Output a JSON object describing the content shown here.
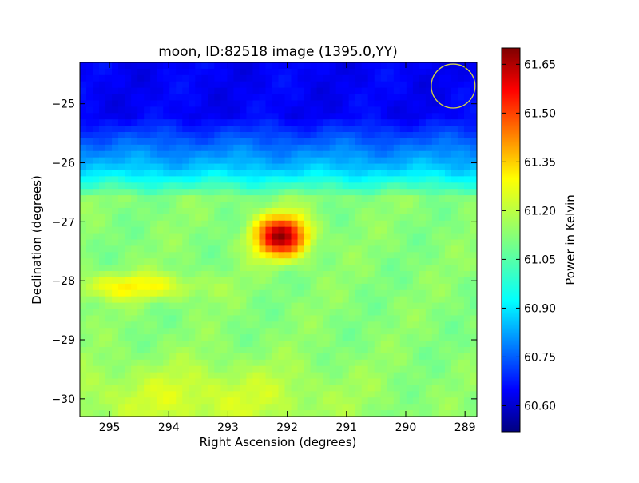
{
  "chart_data": {
    "type": "heatmap",
    "title": "moon, ID:82518 image (1395.0,YY)",
    "xlabel": "Right Ascension (degrees)",
    "ylabel": "Declination (degrees)",
    "xlim": [
      295.5,
      288.8
    ],
    "ylim": [
      -30.3,
      -24.3
    ],
    "x_ticks": [
      295,
      294,
      293,
      292,
      291,
      290,
      289
    ],
    "x_tick_labels": [
      "295",
      "294",
      "293",
      "292",
      "291",
      "290",
      "289"
    ],
    "y_ticks": [
      -25,
      -26,
      -27,
      -28,
      -29,
      -30
    ],
    "y_tick_labels": [
      "−25",
      "−26",
      "−27",
      "−28",
      "−29",
      "−30"
    ],
    "colorbar": {
      "label": "Power in Kelvin",
      "range": [
        60.52,
        61.7
      ],
      "ticks": [
        60.6,
        60.75,
        60.9,
        61.05,
        61.2,
        61.35,
        61.5,
        61.65
      ],
      "tick_labels": [
        "60.60",
        "60.75",
        "60.90",
        "61.05",
        "61.20",
        "61.35",
        "61.50",
        "61.65"
      ],
      "colormap": "jet"
    },
    "hotspot": {
      "ra": 292.1,
      "dec": -27.25,
      "peak_value": 61.68
    },
    "beam_circle": {
      "ra": 289.2,
      "dec": -24.7,
      "radius_deg": 0.37,
      "color": "#d4d443"
    }
  }
}
